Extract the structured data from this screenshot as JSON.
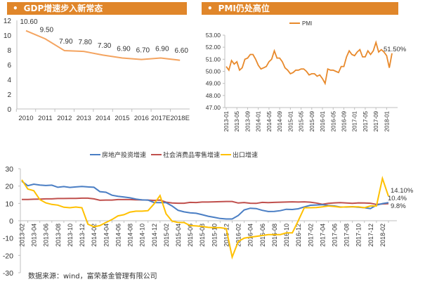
{
  "panels": {
    "gdp_title": "GDP增速步入新常态",
    "pmi_title": "PMI仍处高位",
    "bullet": "•"
  },
  "source_note": "数据来源：wind，富荣基金管理有限公司",
  "colors": {
    "header": "#E0862A",
    "gdp_line": "#F4A460",
    "pmi_line": "#E8892B",
    "real_estate": "#4A7EC4",
    "retail": "#C0504D",
    "export": "#FFC000",
    "axis": "#BFBFBF"
  },
  "chart_data": [
    {
      "id": "gdp",
      "type": "line",
      "title": "GDP增速步入新常态",
      "categories": [
        "2010",
        "2011",
        "2012",
        "2013",
        "2014",
        "2015",
        "2016",
        "2017E",
        "2018E"
      ],
      "values": [
        10.6,
        9.5,
        7.9,
        7.8,
        7.3,
        6.9,
        6.7,
        6.9,
        6.6
      ],
      "data_labels": [
        "10.60",
        "9.50",
        "7.90",
        "7.80",
        "7.30",
        "6.90",
        "6.70",
        "6.90",
        "6.60"
      ],
      "ylim": [
        0,
        12
      ],
      "yticks": [
        "0",
        "2",
        "4",
        "6",
        "8",
        "10",
        "12"
      ],
      "grid": false,
      "xlabel": "",
      "ylabel": ""
    },
    {
      "id": "pmi",
      "type": "line",
      "title": "PMI仍处高位",
      "legend": [
        "PMI"
      ],
      "legend_position": "top",
      "x_ticks": [
        "2013-01",
        "2013-05",
        "2013-09",
        "2014-01",
        "2014-05",
        "2014-09",
        "2015-01",
        "2015-05",
        "2015-09",
        "2016-01",
        "2016-05",
        "2016-09",
        "2017-01",
        "2017-05",
        "2017-09",
        "2018-01"
      ],
      "start": "2013-01",
      "values": [
        50.4,
        50.1,
        50.9,
        50.6,
        50.8,
        50.1,
        50.3,
        51.0,
        51.1,
        51.4,
        51.4,
        51.0,
        50.5,
        50.2,
        50.3,
        50.4,
        50.8,
        51.0,
        51.7,
        51.1,
        51.1,
        50.8,
        50.3,
        50.1,
        49.8,
        49.9,
        50.1,
        50.1,
        50.2,
        50.2,
        50.0,
        49.7,
        49.8,
        49.8,
        49.6,
        49.7,
        49.4,
        49.0,
        50.2,
        50.1,
        50.1,
        50.0,
        49.9,
        50.4,
        50.4,
        51.2,
        51.7,
        51.4,
        51.3,
        51.6,
        51.8,
        51.2,
        51.2,
        51.7,
        51.4,
        51.7,
        52.4,
        51.6,
        51.8,
        51.6,
        51.3,
        50.3,
        51.5
      ],
      "end_label": "51.50%",
      "ylim": [
        47,
        53
      ],
      "yticks": [
        "47.00",
        "48.00",
        "49.00",
        "50.00",
        "51.00",
        "52.00",
        "53.00"
      ],
      "grid": false
    },
    {
      "id": "growth",
      "type": "line",
      "legend": [
        "房地产投资增速",
        "社会消费品零售增速",
        "出口增速"
      ],
      "legend_position": "top",
      "x_ticks": [
        "2013-02",
        "2013-04",
        "2013-06",
        "2013-08",
        "2013-10",
        "2013-12",
        "2014-02",
        "2014-04",
        "2014-06",
        "2014-08",
        "2014-10",
        "2014-12",
        "2015-02",
        "2015-04",
        "2015-06",
        "2015-08",
        "2015-10",
        "2015-12",
        "2016-02",
        "2016-04",
        "2016-06",
        "2016-08",
        "2016-10",
        "2016-12",
        "2017-02",
        "2017-04",
        "2017-06",
        "2017-08",
        "2017-10",
        "2017-12",
        "2018-02"
      ],
      "start": "2013-02",
      "series": [
        {
          "name": "房地产投资增速",
          "values": [
            22.8,
            20.2,
            21.1,
            20.6,
            20.3,
            20.5,
            19.3,
            19.7,
            19.2,
            19.5,
            19.8,
            19.5,
            19.3,
            16.8,
            16.4,
            14.7,
            14.1,
            13.7,
            13.2,
            12.5,
            12.0,
            11.9,
            10.5,
            10.4,
            10.4,
            8.5,
            6.0,
            5.1,
            4.6,
            4.3,
            3.5,
            2.6,
            2.0,
            1.3,
            1.0,
            1.0,
            3.0,
            6.2,
            7.2,
            7.0,
            6.0,
            5.3,
            5.4,
            5.8,
            6.6,
            6.5,
            6.9,
            8.0,
            8.9,
            9.1,
            9.3,
            8.8,
            8.5,
            7.9,
            7.9,
            8.1,
            7.8,
            7.5,
            7.0,
            9.0,
            9.9,
            10.4
          ]
        },
        {
          "name": "社会消费品零售增速",
          "values": [
            12.3,
            12.3,
            12.4,
            12.5,
            12.6,
            12.6,
            12.8,
            12.8,
            12.9,
            12.9,
            13.0,
            13.0,
            12.6,
            11.8,
            11.9,
            11.9,
            12.2,
            12.2,
            12.2,
            12.1,
            12.0,
            11.9,
            11.7,
            11.9,
            10.7,
            10.2,
            10.1,
            10.1,
            10.6,
            10.5,
            10.8,
            10.8,
            10.9,
            11.0,
            11.1,
            11.1,
            10.2,
            10.5,
            10.1,
            10.0,
            10.6,
            10.4,
            10.6,
            10.7,
            10.8,
            10.9,
            10.8,
            10.9,
            10.7,
            10.2,
            9.5,
            10.0,
            10.3,
            10.4,
            10.2,
            10.0,
            10.3,
            10.2,
            10.1,
            9.4,
            9.7,
            9.8
          ]
        },
        {
          "name": "出口增速",
          "values": [
            23.6,
            18.3,
            17.3,
            12.2,
            10.3,
            9.4,
            9.0,
            7.8,
            7.5,
            7.9,
            7.5,
            -2.0,
            -3.5,
            -2.8,
            -1.0,
            0.7,
            2.8,
            3.5,
            5.0,
            5.5,
            5.5,
            5.8,
            9.7,
            14.5,
            4.0,
            -0.2,
            -1.0,
            -1.0,
            -2.8,
            -3.0,
            -3.3,
            -3.8,
            -4.0,
            -4.0,
            -4.5,
            -21.0,
            -12.0,
            -10.0,
            -9.5,
            -9.0,
            -8.5,
            -8.0,
            -8.0,
            -8.0,
            -7.0,
            -7.0,
            0.0,
            7.5,
            7.5,
            7.6,
            8.0,
            8.5,
            8.2,
            7.8,
            8.0,
            8.0,
            8.0,
            7.5,
            8.5,
            8.5,
            24.4,
            14.1
          ]
        }
      ],
      "end_labels": [
        "14.10%",
        "10.4%",
        "9.8%"
      ],
      "ylim": [
        -30,
        30
      ],
      "yticks": [
        "-30",
        "-20",
        "-10",
        "0",
        "10",
        "20",
        "30"
      ],
      "grid": false
    }
  ]
}
